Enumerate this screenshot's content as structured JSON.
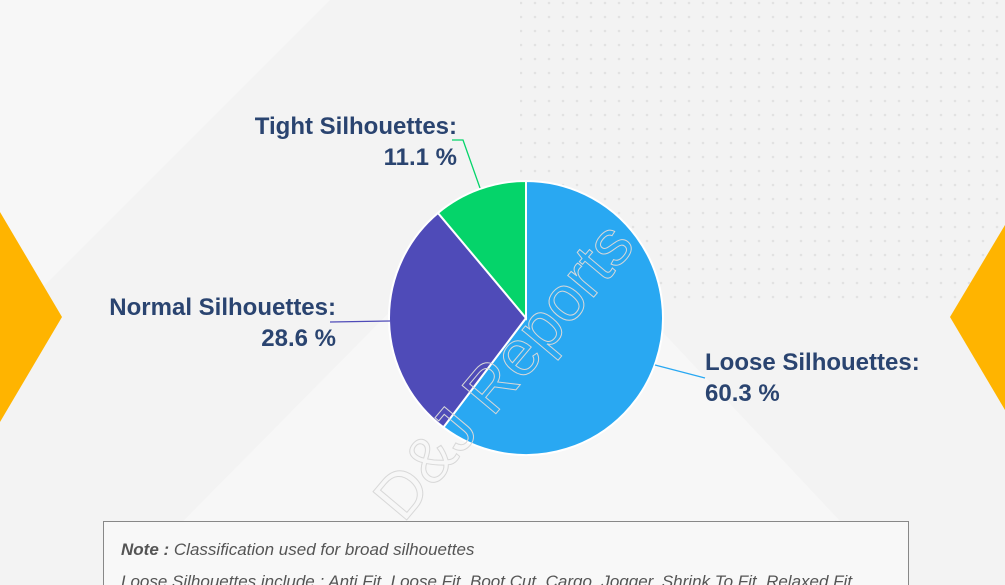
{
  "chart_data": {
    "type": "pie",
    "categories": [
      "Loose Silhouettes:",
      "Normal Silhouettes:",
      "Tight Silhouettes:"
    ],
    "values": [
      60.3,
      28.6,
      11.1
    ],
    "value_labels": [
      "60.3 %",
      "28.6 %",
      "11.1 %"
    ],
    "colors": [
      "#29a8f2",
      "#4f4bb8",
      "#05d46a"
    ],
    "watermark": "D&J Reports"
  },
  "note": {
    "label": "Note :",
    "text": "Classification used for broad silhouettes",
    "line2": "Loose Silhouettes include : Anti Fit, Loose Fit, Boot Cut, Cargo, Jogger, Shrink To Fit, Relaxed Fit"
  }
}
